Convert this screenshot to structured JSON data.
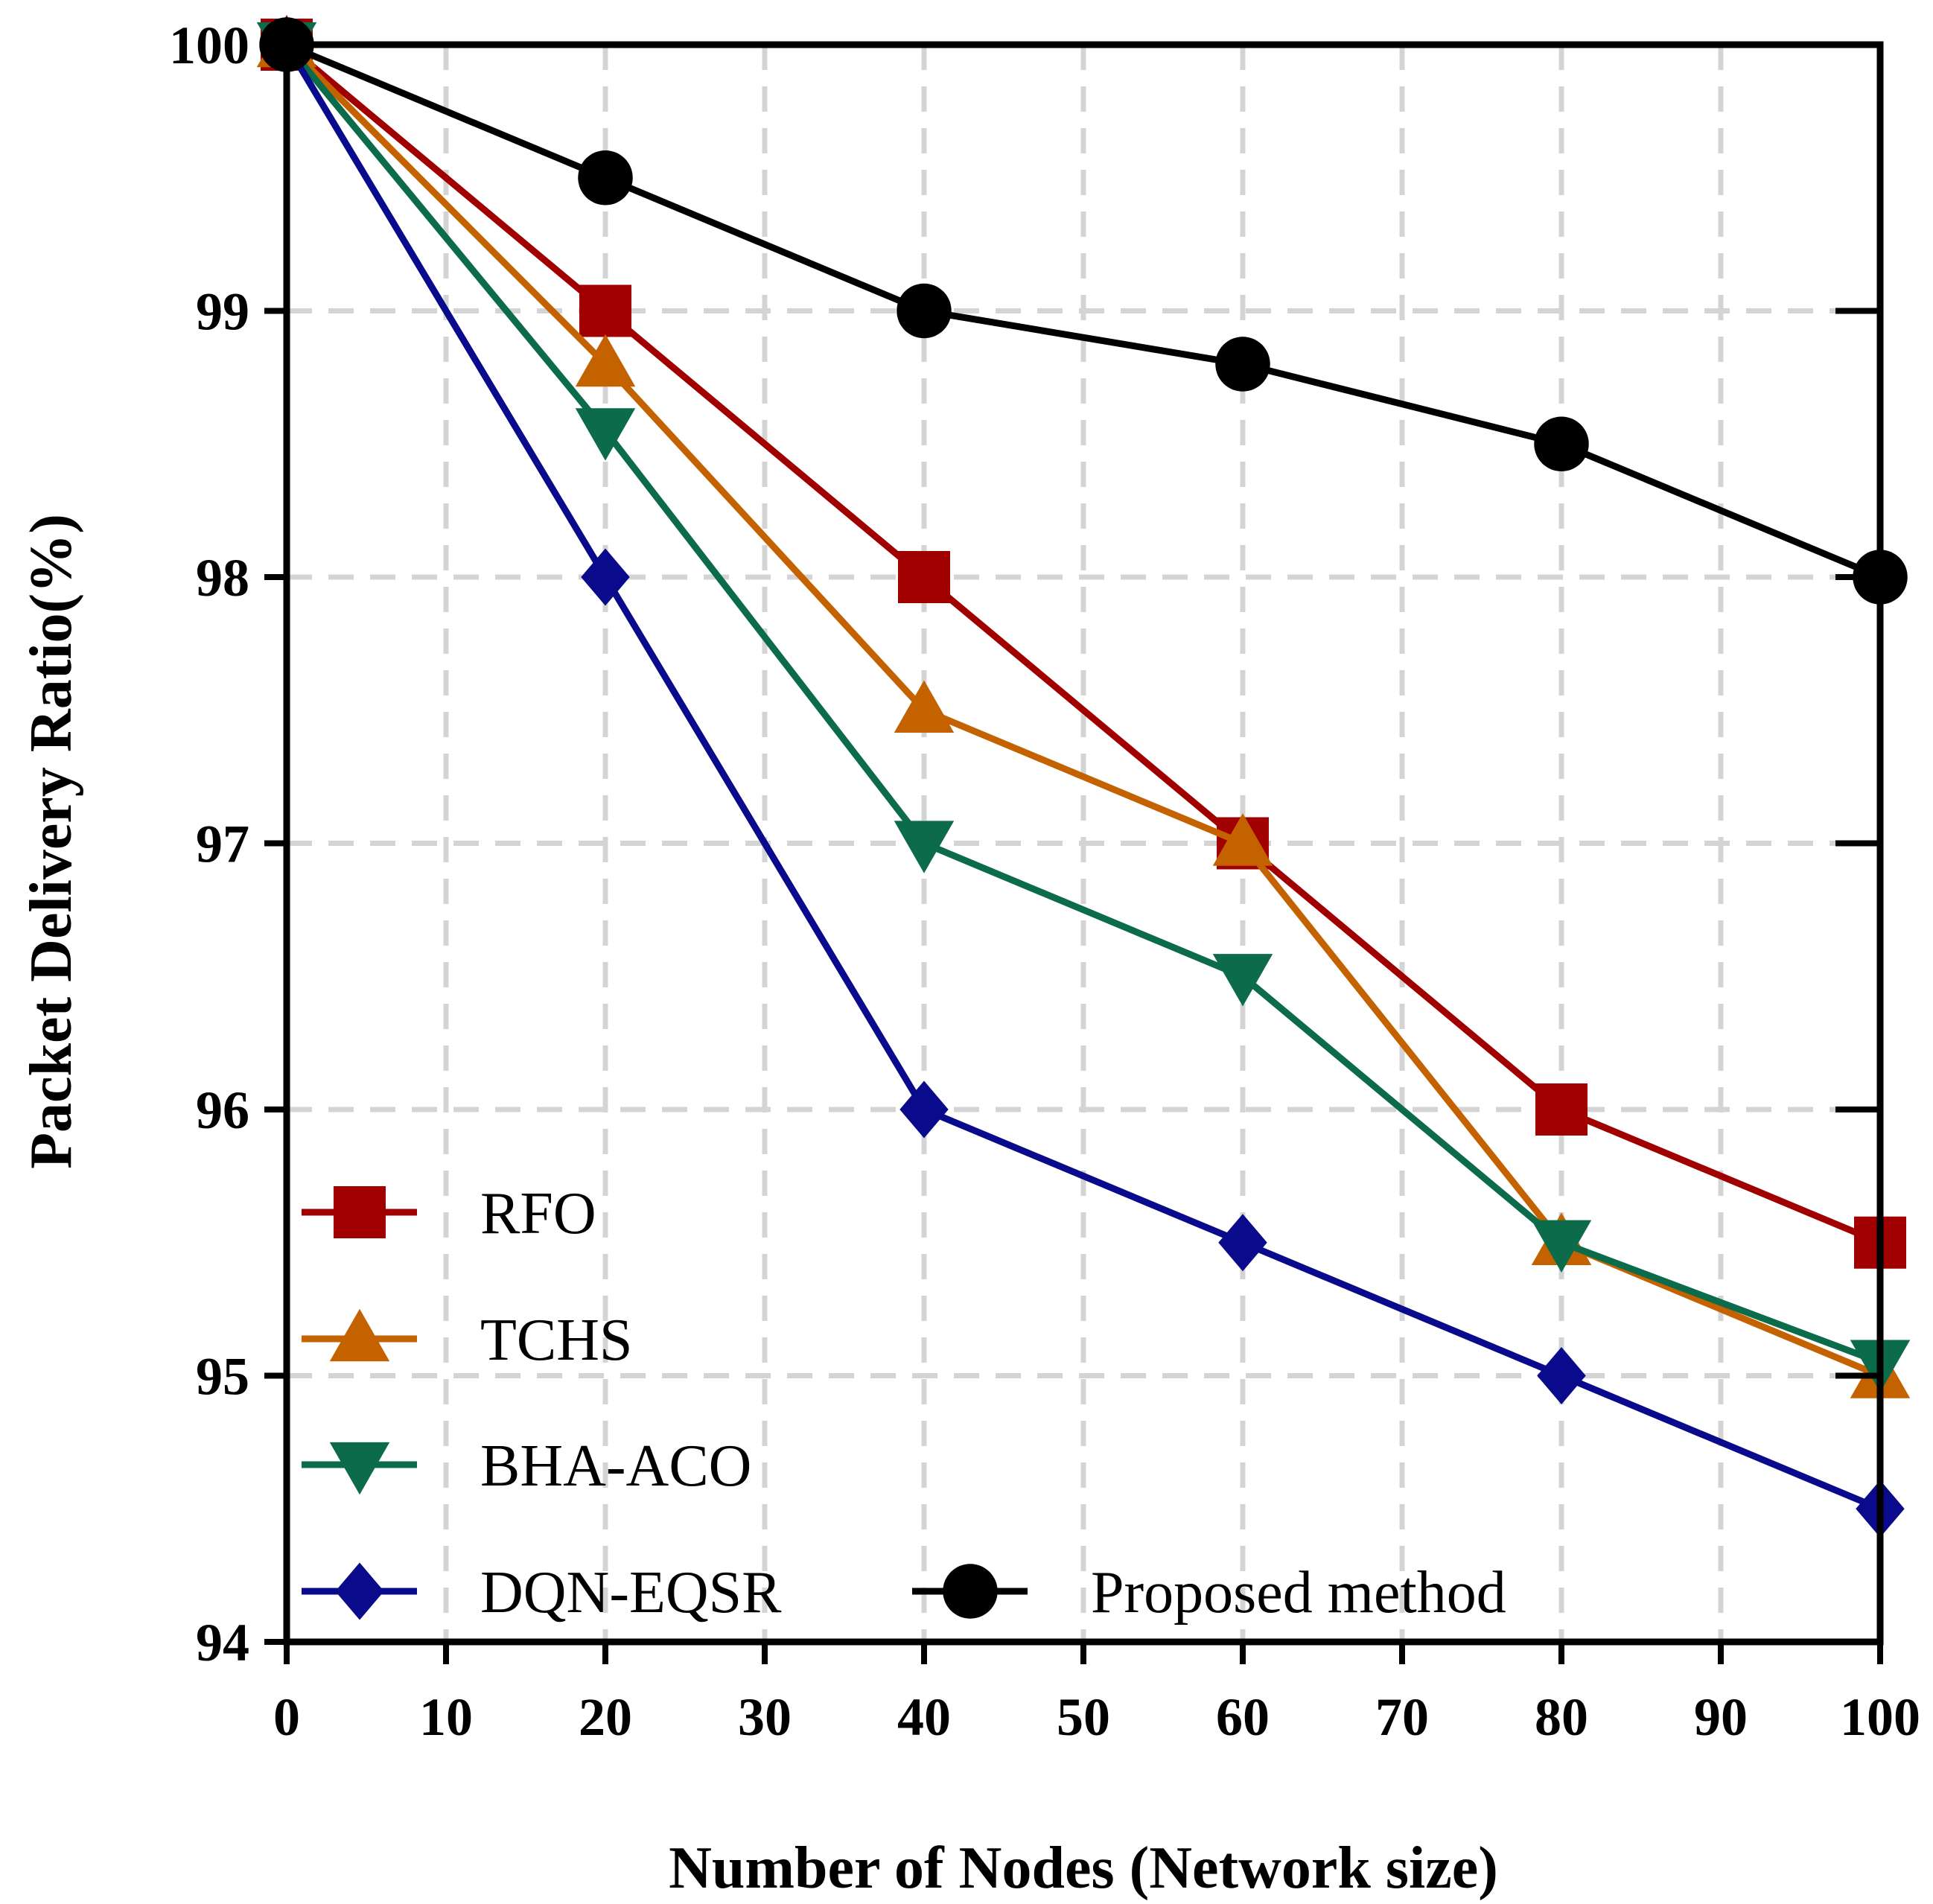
{
  "chart_data": {
    "type": "line",
    "title": "",
    "xlabel": "Number of Nodes (Network size)",
    "ylabel": "Packet Delivery Ratio(%)",
    "xlim": [
      0,
      100
    ],
    "ylim": [
      94,
      100
    ],
    "xticks": [
      0,
      10,
      20,
      30,
      40,
      50,
      60,
      70,
      80,
      90,
      100
    ],
    "yticks": [
      94,
      95,
      96,
      97,
      98,
      99,
      100
    ],
    "grid": true,
    "legend_position": "bottom-left",
    "x": [
      0,
      20,
      40,
      60,
      80,
      100
    ],
    "series": [
      {
        "name": "RFO",
        "marker": "square",
        "color": "#a00000",
        "values": [
          100,
          99.0,
          98.0,
          97.0,
          96.0,
          95.5
        ]
      },
      {
        "name": "TCHS",
        "marker": "triangle-up",
        "color": "#c46200",
        "values": [
          100,
          98.8,
          97.5,
          97.0,
          95.5,
          95.0
        ]
      },
      {
        "name": "BHA-ACO",
        "marker": "triangle-down",
        "color": "#0b6b4a",
        "values": [
          100,
          98.55,
          97.0,
          96.5,
          95.5,
          95.05
        ]
      },
      {
        "name": "DQN-EQSR",
        "marker": "diamond",
        "color": "#0a0a8c",
        "values": [
          100,
          98.0,
          96.0,
          95.5,
          95.0,
          94.5
        ]
      },
      {
        "name": "Proposed method",
        "marker": "circle",
        "color": "#000000",
        "values": [
          100,
          99.5,
          99.0,
          98.8,
          98.5,
          98.0
        ]
      }
    ]
  }
}
